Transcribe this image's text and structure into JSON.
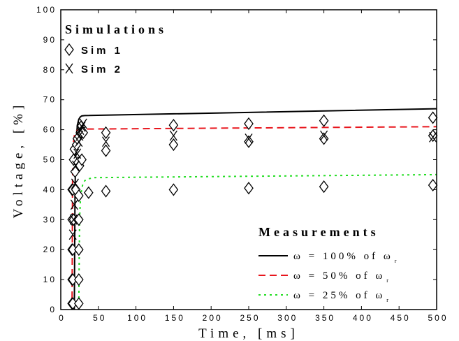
{
  "chart_data": {
    "type": "line",
    "title": "",
    "xlabel": "Time, [ms]",
    "ylabel": "Voltage, [%]",
    "xlim": [
      0,
      500
    ],
    "ylim": [
      0,
      100
    ],
    "xticks": [
      0,
      50,
      100,
      150,
      200,
      250,
      300,
      350,
      400,
      450,
      500
    ],
    "yticks": [
      0,
      10,
      20,
      30,
      40,
      50,
      60,
      70,
      80,
      90,
      100
    ],
    "grid": false,
    "legend_simulations": {
      "title": "Simulations",
      "placement": "top-left",
      "entries": [
        {
          "marker": "diamond",
          "label": "Sim 1"
        },
        {
          "marker": "x",
          "label": "Sim 2"
        }
      ]
    },
    "legend_measurements": {
      "title": "Measurements",
      "placement": "bottom-right",
      "entries": [
        {
          "symbol": "ω",
          "text": " = 100%  of ω",
          "sub": "r",
          "color": "#000000",
          "dash": "none"
        },
        {
          "symbol": "ω",
          "text": " = 50%  of ω",
          "sub": "r",
          "color": "#e8161d",
          "dash": "10,6"
        },
        {
          "symbol": "ω",
          "text": " = 25%  of ω",
          "sub": "r",
          "color": "#22dd22",
          "dash": "3,5"
        }
      ]
    },
    "measurement_series": [
      {
        "name": "ω = 100% of ωr",
        "color": "#000000",
        "dash": "none",
        "x": [
          18,
          18.5,
          19,
          20,
          21,
          22,
          24,
          26,
          28,
          32,
          500
        ],
        "y": [
          0,
          20,
          40,
          52,
          58,
          61.5,
          63.5,
          64.3,
          64.6,
          64.7,
          67
        ]
      },
      {
        "name": "ω = 50% of ωr",
        "color": "#e8161d",
        "dash": "10,6",
        "x": [
          15,
          15.3,
          15.6,
          16,
          17,
          18,
          20,
          22,
          25,
          30,
          500
        ],
        "y": [
          0,
          20,
          40,
          52,
          56,
          58,
          59.3,
          59.8,
          60,
          60.2,
          61
        ]
      },
      {
        "name": "ω = 25% of ωr",
        "color": "#22dd22",
        "dash": "3,5",
        "x": [
          24,
          24.3,
          24.6,
          25,
          26,
          27,
          29,
          32,
          36,
          45,
          500
        ],
        "y": [
          0,
          10,
          20,
          30,
          36,
          39,
          41.5,
          43,
          43.6,
          44,
          45
        ]
      }
    ],
    "sim1_points": {
      "x": [
        15,
        15,
        15,
        15,
        15,
        16,
        16,
        16,
        16,
        17,
        17,
        18,
        19,
        20,
        21,
        22,
        23,
        24,
        24,
        24,
        24,
        24,
        25,
        26,
        27,
        28,
        30,
        37,
        60,
        60,
        60,
        150,
        150,
        150,
        250,
        250,
        250,
        350,
        350,
        350,
        495,
        495,
        495
      ],
      "y": [
        2,
        10,
        20,
        30,
        40,
        2,
        10,
        20,
        40,
        50,
        30,
        53.5,
        46,
        40,
        55,
        57,
        49,
        2,
        10,
        20,
        30,
        38,
        48,
        59,
        61,
        50,
        59,
        39,
        53,
        59,
        39.5,
        55,
        61.5,
        40,
        56,
        62,
        40.5,
        57,
        63,
        41,
        58,
        64,
        41.5
      ]
    },
    "sim2_points": {
      "x": [
        16,
        17,
        18,
        19,
        20,
        22,
        24,
        25,
        26,
        28,
        30,
        60,
        150,
        250,
        350,
        495
      ],
      "y": [
        25,
        30,
        35,
        42,
        48,
        52,
        56,
        58,
        60,
        61,
        62,
        56,
        58,
        57,
        58,
        57.5
      ]
    }
  }
}
